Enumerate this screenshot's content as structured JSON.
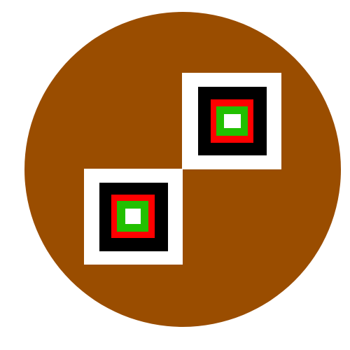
{
  "colors": {
    "background": "#ffffff",
    "disc": "#9a4d00",
    "frame": "#ffffff",
    "outer": "#000000",
    "middle": "#ff0000",
    "inner": "#22c000",
    "core": "#ffffff"
  },
  "shapes": {
    "disc": "circle",
    "emblems": 2,
    "nesting_order": [
      "frame",
      "outer",
      "middle",
      "inner",
      "core"
    ]
  }
}
